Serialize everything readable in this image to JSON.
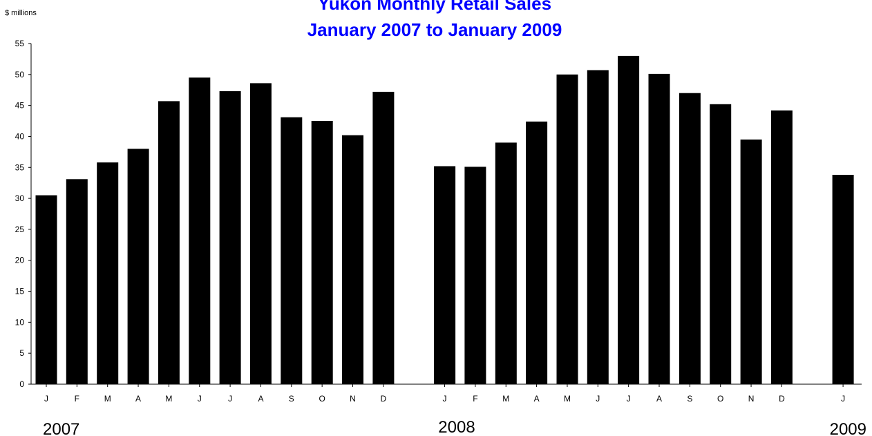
{
  "chart_data": {
    "type": "bar",
    "title": "Yukon Monthly Retail Sales",
    "subtitle": "January 2007 to January 2009",
    "ylabel": "$ millions",
    "xlabel": "",
    "ylim": [
      0,
      55
    ],
    "yticks": [
      0,
      5,
      10,
      15,
      20,
      25,
      30,
      35,
      40,
      45,
      50,
      55
    ],
    "grid": false,
    "legend": "none",
    "bar_color": "#000000",
    "title_color": "#0000ff",
    "groups": [
      {
        "year": "2007",
        "categories": [
          "J",
          "F",
          "M",
          "A",
          "M",
          "J",
          "J",
          "A",
          "S",
          "O",
          "N",
          "D"
        ],
        "values": [
          30.5,
          33.1,
          35.8,
          38.0,
          45.7,
          49.5,
          47.3,
          48.6,
          43.1,
          42.5,
          40.2,
          47.2
        ]
      },
      {
        "year": "2008",
        "categories": [
          "J",
          "F",
          "M",
          "A",
          "M",
          "J",
          "J",
          "A",
          "S",
          "O",
          "N",
          "D"
        ],
        "values": [
          35.2,
          35.1,
          39.0,
          42.4,
          50.0,
          50.7,
          53.0,
          50.1,
          47.0,
          45.2,
          39.5,
          44.2
        ]
      },
      {
        "year": "2009",
        "categories": [
          "J"
        ],
        "values": [
          33.8
        ]
      }
    ]
  }
}
